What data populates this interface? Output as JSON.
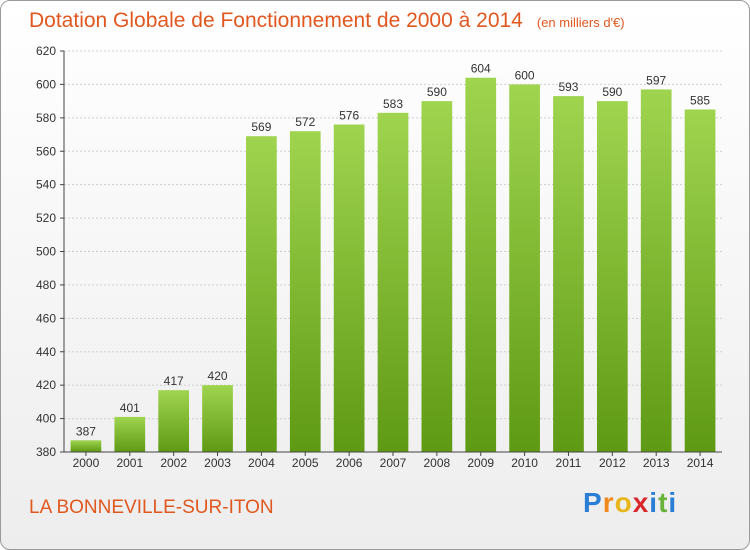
{
  "header": {
    "title": "Dotation Globale de Fonctionnement de 2000 à 2014",
    "subtitle": "(en milliers d'€)"
  },
  "footer": {
    "town": "LA BONNEVILLE-SUR-ITON"
  },
  "brand": {
    "letters": [
      "P",
      "r",
      "o",
      "x",
      "i",
      "t",
      "i"
    ],
    "colors": [
      "#2a7fd4",
      "#f08a1c",
      "#e8b51a",
      "#d8282d",
      "#2a7fd4",
      "#69b23c",
      "#2a7fd4"
    ]
  },
  "chart_data": {
    "type": "bar",
    "title": "Dotation Globale de Fonctionnement de 2000 à 2014",
    "subtitle": "(en milliers d'€)",
    "categories": [
      "2000",
      "2001",
      "2002",
      "2003",
      "2004",
      "2005",
      "2006",
      "2007",
      "2008",
      "2009",
      "2010",
      "2011",
      "2012",
      "2013",
      "2014"
    ],
    "values": [
      387,
      401,
      417,
      420,
      569,
      572,
      576,
      583,
      590,
      604,
      600,
      593,
      590,
      597,
      585
    ],
    "ylim": [
      380,
      620
    ],
    "yticks": [
      380,
      400,
      420,
      440,
      460,
      480,
      500,
      520,
      540,
      560,
      580,
      600,
      620
    ],
    "grid": true,
    "bar_color_top": "#9fd44f",
    "bar_color_bottom": "#5f9a14"
  }
}
